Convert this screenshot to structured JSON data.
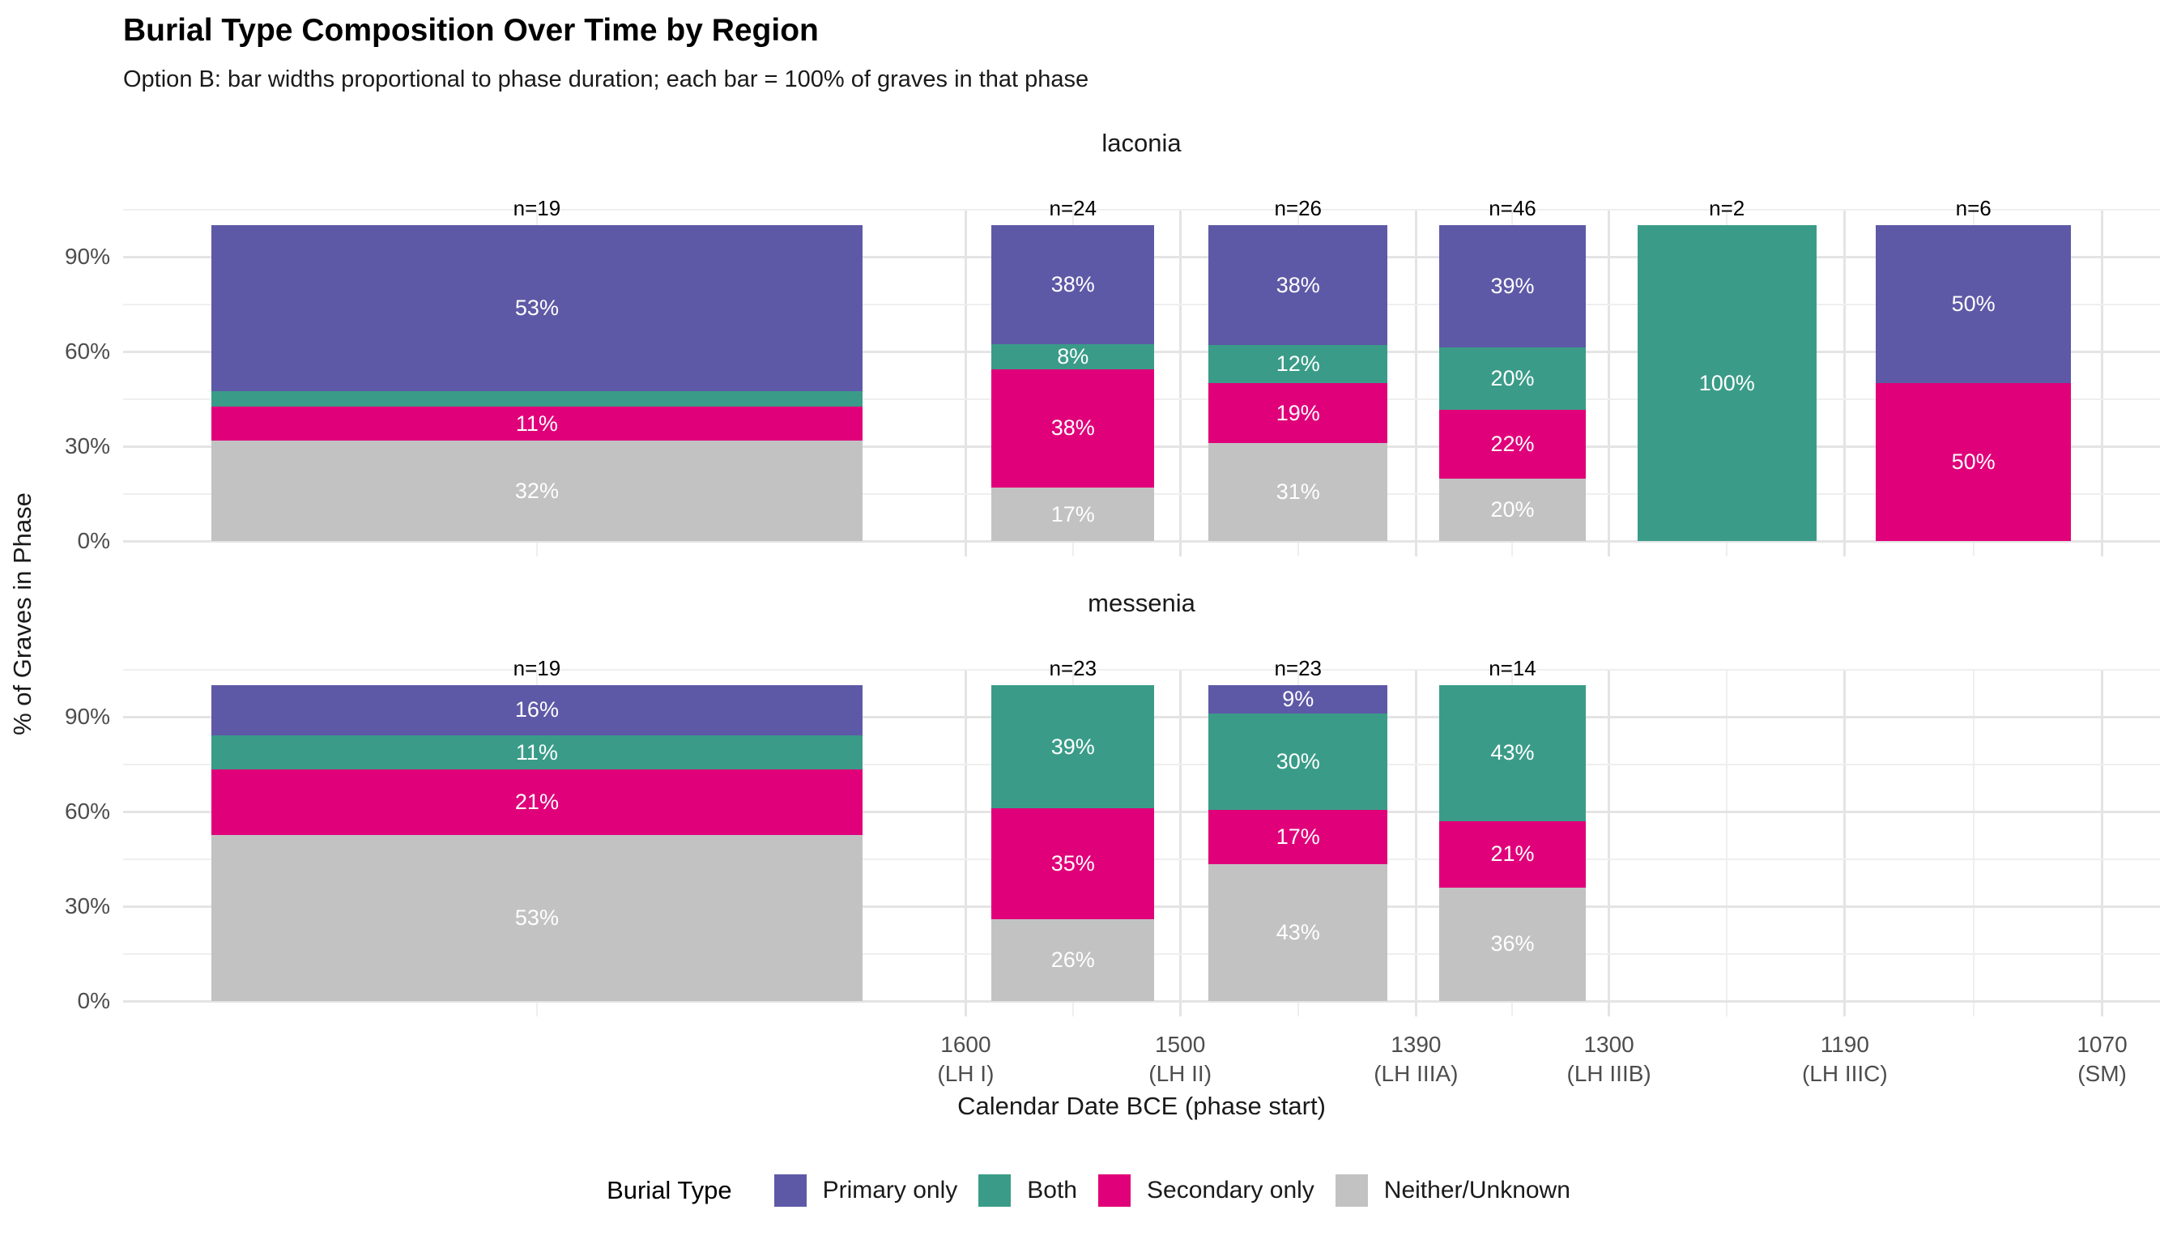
{
  "title": "Burial Type Composition Over Time by Region",
  "subtitle": "Option B: bar widths proportional to phase duration; each bar = 100% of graves in that phase",
  "chart_data": {
    "type": "bar",
    "variant": "stacked-percent-facets-variable-width",
    "title": "Burial Type Composition Over Time by Region",
    "subtitle": "Option B: bar widths proportional to phase duration; each bar = 100% of graves in that phase",
    "grid": "on",
    "y_axis": {
      "label": "% of Graves in Phase",
      "tick_values": [
        0,
        30,
        60,
        90
      ],
      "tick_labels": [
        "0%",
        "30%",
        "60%",
        "90%"
      ],
      "minor_tick_values": [
        15,
        45,
        75,
        105
      ],
      "ylim": [
        -5,
        105
      ]
    },
    "x_axis": {
      "label": "Calendar Date BCE (phase start)",
      "domain_years": [
        1993,
        1043
      ],
      "ticks": [
        {
          "year": 1600,
          "line1": "1600",
          "line2": "(LH I)"
        },
        {
          "year": 1500,
          "line1": "1500",
          "line2": "(LH II)"
        },
        {
          "year": 1390,
          "line1": "1390",
          "line2": "(LH IIIA)"
        },
        {
          "year": 1300,
          "line1": "1300",
          "line2": "(LH IIIB)"
        },
        {
          "year": 1190,
          "line1": "1190",
          "line2": "(LH IIIC)"
        },
        {
          "year": 1070,
          "line1": "1070",
          "line2": "(SM)"
        }
      ],
      "minor_grid_years": [
        1800,
        1550,
        1445,
        1345,
        1245,
        1130
      ]
    },
    "legend": {
      "title": "Burial Type",
      "position": "bottom",
      "entries": [
        {
          "key": "primary",
          "label": "Primary only",
          "color": "#5e59a6"
        },
        {
          "key": "both",
          "label": "Both",
          "color": "#3a9c88"
        },
        {
          "key": "secondary",
          "label": "Secondary only",
          "color": "#e0007a"
        },
        {
          "key": "neither",
          "label": "Neither/Unknown",
          "color": "#c2c2c2"
        }
      ]
    },
    "bar_width_fraction_of_duration": 0.76,
    "facets": [
      {
        "label": "laconia",
        "bars": [
          {
            "phase_start_year": 2000,
            "phase_end_year": 1600,
            "n_label": "n=19",
            "segments": [
              {
                "key": "primary",
                "pct": 53,
                "label": "53%"
              },
              {
                "key": "both",
                "pct": 5
              },
              {
                "key": "secondary",
                "pct": 11,
                "label": "11%"
              },
              {
                "key": "neither",
                "pct": 32,
                "label": "32%"
              }
            ]
          },
          {
            "phase_start_year": 1600,
            "phase_end_year": 1500,
            "n_label": "n=24",
            "segments": [
              {
                "key": "primary",
                "pct": 38,
                "label": "38%"
              },
              {
                "key": "both",
                "pct": 8,
                "label": "8%"
              },
              {
                "key": "secondary",
                "pct": 38,
                "label": "38%"
              },
              {
                "key": "neither",
                "pct": 17,
                "label": "17%"
              }
            ]
          },
          {
            "phase_start_year": 1500,
            "phase_end_year": 1390,
            "n_label": "n=26",
            "segments": [
              {
                "key": "primary",
                "pct": 38,
                "label": "38%"
              },
              {
                "key": "both",
                "pct": 12,
                "label": "12%"
              },
              {
                "key": "secondary",
                "pct": 19,
                "label": "19%"
              },
              {
                "key": "neither",
                "pct": 31,
                "label": "31%"
              }
            ]
          },
          {
            "phase_start_year": 1390,
            "phase_end_year": 1300,
            "n_label": "n=46",
            "segments": [
              {
                "key": "primary",
                "pct": 39,
                "label": "39%"
              },
              {
                "key": "both",
                "pct": 20,
                "label": "20%"
              },
              {
                "key": "secondary",
                "pct": 22,
                "label": "22%"
              },
              {
                "key": "neither",
                "pct": 20,
                "label": "20%"
              }
            ]
          },
          {
            "phase_start_year": 1300,
            "phase_end_year": 1190,
            "n_label": "n=2",
            "segments": [
              {
                "key": "both",
                "pct": 100,
                "label": "100%"
              }
            ]
          },
          {
            "phase_start_year": 1190,
            "phase_end_year": 1070,
            "n_label": "n=6",
            "segments": [
              {
                "key": "primary",
                "pct": 50,
                "label": "50%"
              },
              {
                "key": "secondary",
                "pct": 50,
                "label": "50%"
              }
            ]
          }
        ]
      },
      {
        "label": "messenia",
        "bars": [
          {
            "phase_start_year": 2000,
            "phase_end_year": 1600,
            "n_label": "n=19",
            "segments": [
              {
                "key": "primary",
                "pct": 16,
                "label": "16%"
              },
              {
                "key": "both",
                "pct": 11,
                "label": "11%"
              },
              {
                "key": "secondary",
                "pct": 21,
                "label": "21%"
              },
              {
                "key": "neither",
                "pct": 53,
                "label": "53%"
              }
            ]
          },
          {
            "phase_start_year": 1600,
            "phase_end_year": 1500,
            "n_label": "n=23",
            "segments": [
              {
                "key": "both",
                "pct": 39,
                "label": "39%"
              },
              {
                "key": "secondary",
                "pct": 35,
                "label": "35%"
              },
              {
                "key": "neither",
                "pct": 26,
                "label": "26%"
              }
            ]
          },
          {
            "phase_start_year": 1500,
            "phase_end_year": 1390,
            "n_label": "n=23",
            "segments": [
              {
                "key": "primary",
                "pct": 9,
                "label": "9%"
              },
              {
                "key": "both",
                "pct": 30,
                "label": "30%"
              },
              {
                "key": "secondary",
                "pct": 17,
                "label": "17%"
              },
              {
                "key": "neither",
                "pct": 43,
                "label": "43%"
              }
            ]
          },
          {
            "phase_start_year": 1390,
            "phase_end_year": 1300,
            "n_label": "n=14",
            "segments": [
              {
                "key": "both",
                "pct": 43,
                "label": "43%"
              },
              {
                "key": "secondary",
                "pct": 21,
                "label": "21%"
              },
              {
                "key": "neither",
                "pct": 36,
                "label": "36%"
              }
            ]
          }
        ]
      }
    ]
  }
}
